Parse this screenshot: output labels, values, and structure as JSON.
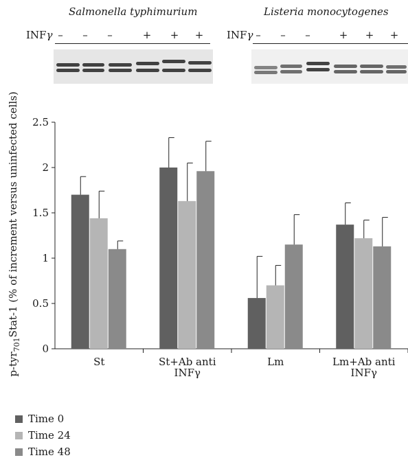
{
  "blot_left": {
    "title": "Salmonella typhimurium",
    "ifn_label": "INF",
    "ifn_label_symbol": "γ",
    "lanes": [
      "–",
      "–",
      "–",
      "+",
      "+",
      "+"
    ]
  },
  "blot_right": {
    "title": "Listeria monocytogenes",
    "ifn_label": "INF",
    "ifn_label_symbol": "γ",
    "lanes": [
      "–",
      "–",
      "–",
      "+",
      "+",
      "+"
    ]
  },
  "colors": {
    "time0": "#606060",
    "time24": "#b5b5b5",
    "time48": "#8a8a8a"
  },
  "chart_data": {
    "type": "bar",
    "categories": [
      "St",
      "St+Ab anti INFγ",
      "Lm",
      "Lm+Ab anti INFγ"
    ],
    "category_lines": [
      [
        "St"
      ],
      [
        "St+Ab anti",
        "INFγ"
      ],
      [
        "Lm"
      ],
      [
        "Lm+Ab anti",
        "INFγ"
      ]
    ],
    "series": [
      {
        "name": "Time 0",
        "values": [
          1.7,
          2.0,
          0.56,
          1.37
        ],
        "errors": [
          0.2,
          0.33,
          0.46,
          0.24
        ]
      },
      {
        "name": "Time 24",
        "values": [
          1.44,
          1.63,
          0.7,
          1.22
        ],
        "errors": [
          0.3,
          0.42,
          0.22,
          0.2
        ]
      },
      {
        "name": "Time 48",
        "values": [
          1.1,
          1.96,
          1.15,
          1.13
        ],
        "errors": [
          0.09,
          0.33,
          0.33,
          0.32
        ]
      }
    ],
    "ylim": [
      0,
      2.5
    ],
    "yticks": [
      "0",
      "0.5",
      "1",
      "1.5",
      "2",
      "2.5"
    ],
    "ylabel": "p-tyr",
    "ylabel_sub": "701",
    "ylabel_rest": "Stat-1 (% of increment versus uninfected cells)",
    "legend_position": "bottom-left"
  }
}
